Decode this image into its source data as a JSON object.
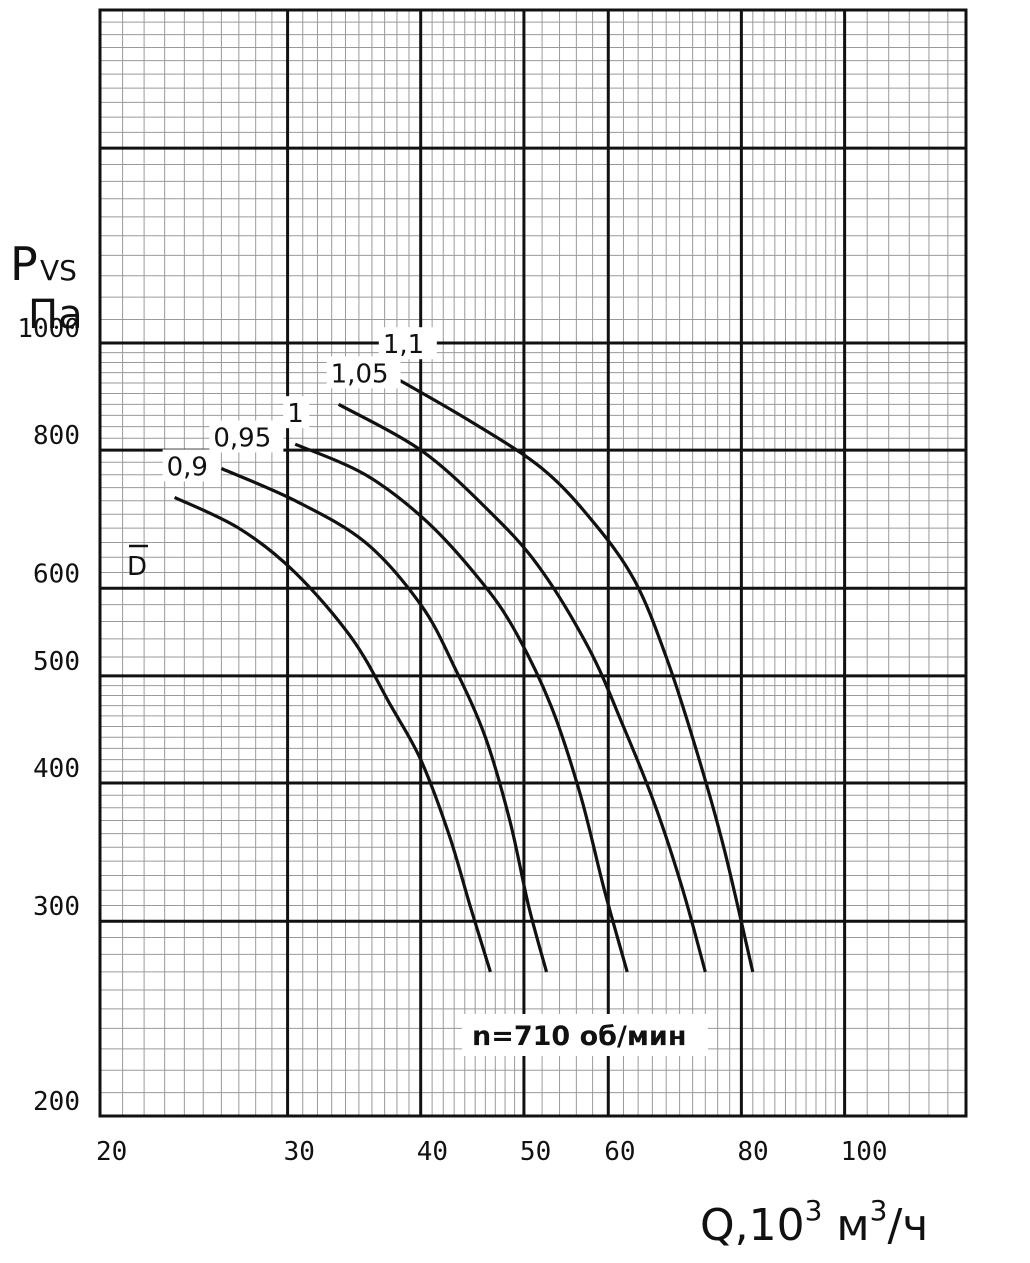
{
  "chart_data": {
    "type": "line",
    "x_scale": "log",
    "y_scale": "log",
    "xlim": [
      20,
      130
    ],
    "ylim": [
      200,
      2000
    ],
    "grid": true,
    "x_major_ticks": [
      20,
      30,
      40,
      50,
      60,
      80,
      100
    ],
    "x_tick_labels": [
      "20",
      "30",
      "40",
      "50",
      "60",
      "80",
      "100"
    ],
    "y_major_ticks": [
      200,
      300,
      400,
      500,
      600,
      800,
      1000
    ],
    "y_tick_labels": [
      "200",
      "300",
      "400",
      "500",
      "600",
      "800",
      "1000"
    ],
    "ylabel_main": "P",
    "ylabel_sub": "VS",
    "ylabel_unit": "Па",
    "xlabel_main": "Q,10",
    "xlabel_exp1": "3",
    "xlabel_mid": " м",
    "xlabel_exp2": "3",
    "xlabel_end": "/ч",
    "legend_symbol": "D",
    "annotation": "n=710  об/мин",
    "series": [
      {
        "name": "0,9",
        "x": [
          23.5,
          27.0,
          30.5,
          34.5,
          37.5,
          40.0,
          42.5,
          44.5,
          46.5
        ],
        "y": [
          725,
          680,
          620,
          540,
          470,
          420,
          360,
          310,
          270
        ]
      },
      {
        "name": "0,95",
        "x": [
          26.0,
          30.5,
          35.5,
          40.0,
          43.0,
          46.0,
          48.5,
          50.5,
          52.5
        ],
        "y": [
          770,
          720,
          660,
          580,
          510,
          440,
          370,
          310,
          270
        ]
      },
      {
        "name": "1",
        "x": [
          30.5,
          35.5,
          40.5,
          45.5,
          49.0,
          53.0,
          56.5,
          59.5,
          62.5
        ],
        "y": [
          810,
          760,
          690,
          610,
          550,
          470,
          390,
          320,
          270
        ]
      },
      {
        "name": "1,05",
        "x": [
          33.5,
          40.0,
          46.0,
          51.5,
          57.5,
          62.0,
          66.5,
          70.5,
          74.0
        ],
        "y": [
          880,
          800,
          710,
          630,
          530,
          450,
          380,
          320,
          270
        ]
      },
      {
        "name": "1,1",
        "x": [
          37.5,
          44.5,
          52.0,
          58.0,
          63.5,
          68.0,
          72.5,
          77.0,
          82.0
        ],
        "y": [
          935,
          850,
          770,
          690,
          610,
          520,
          430,
          350,
          270
        ]
      }
    ]
  }
}
